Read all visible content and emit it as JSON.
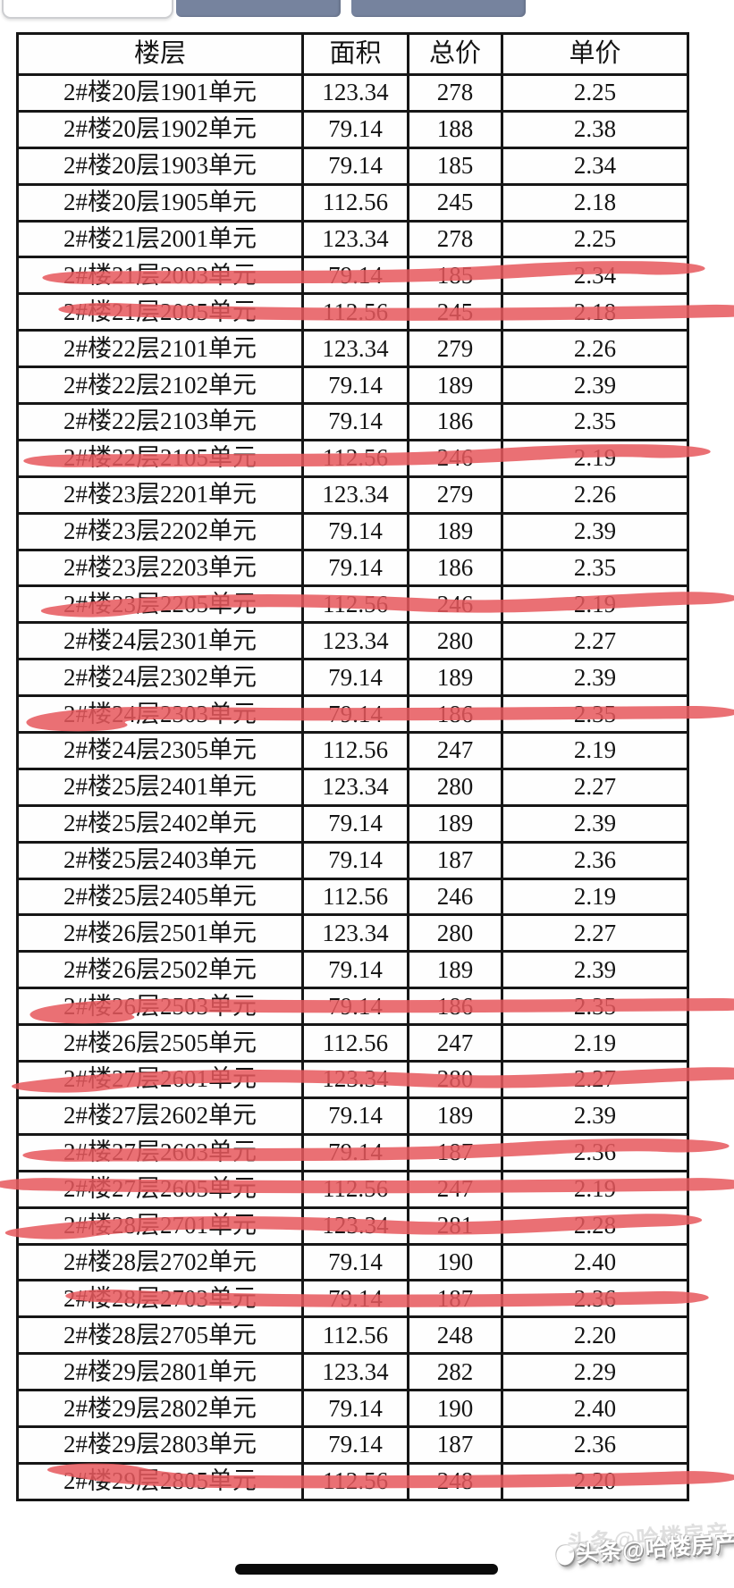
{
  "colors": {
    "tab_inactive": "#76839e",
    "table_border": "#161616",
    "strike": "#e7585d",
    "home_bar": "#0b0b0b"
  },
  "top_tabs": {
    "labels": [
      "",
      "",
      ""
    ]
  },
  "table": {
    "headers": [
      "楼层",
      "面积",
      "总价",
      "单价"
    ],
    "rows": [
      {
        "floor": "2#楼20层1901单元",
        "area": "123.34",
        "total": "278",
        "unit": "2.25",
        "sold": false
      },
      {
        "floor": "2#楼20层1902单元",
        "area": "79.14",
        "total": "188",
        "unit": "2.38",
        "sold": false
      },
      {
        "floor": "2#楼20层1903单元",
        "area": "79.14",
        "total": "185",
        "unit": "2.34",
        "sold": false
      },
      {
        "floor": "2#楼20层1905单元",
        "area": "112.56",
        "total": "245",
        "unit": "2.18",
        "sold": false
      },
      {
        "floor": "2#楼21层2001单元",
        "area": "123.34",
        "total": "278",
        "unit": "2.25",
        "sold": false
      },
      {
        "floor": "2#楼21层2003单元",
        "area": "79.14",
        "total": "185",
        "unit": "2.34",
        "sold": true,
        "strike": {
          "v": "rise",
          "l": 57,
          "r": 737
        }
      },
      {
        "floor": "2#楼21层2005单元",
        "area": "112.56",
        "total": "245",
        "unit": "2.18",
        "sold": true,
        "strike": {
          "v": "sag",
          "l": 77,
          "r": 802
        }
      },
      {
        "floor": "2#楼22层2101单元",
        "area": "123.34",
        "total": "279",
        "unit": "2.26",
        "sold": false
      },
      {
        "floor": "2#楼22层2102单元",
        "area": "79.14",
        "total": "189",
        "unit": "2.39",
        "sold": false
      },
      {
        "floor": "2#楼22层2103单元",
        "area": "79.14",
        "total": "186",
        "unit": "2.35",
        "sold": false
      },
      {
        "floor": "2#楼22层2105单元",
        "area": "112.56",
        "total": "246",
        "unit": "2.19",
        "sold": true,
        "strike": {
          "v": "rise",
          "l": 37,
          "r": 742
        }
      },
      {
        "floor": "2#楼23层2201单元",
        "area": "123.34",
        "total": "279",
        "unit": "2.26",
        "sold": false
      },
      {
        "floor": "2#楼23层2202单元",
        "area": "79.14",
        "total": "189",
        "unit": "2.39",
        "sold": false
      },
      {
        "floor": "2#楼23层2203单元",
        "area": "79.14",
        "total": "186",
        "unit": "2.35",
        "sold": false
      },
      {
        "floor": "2#楼23层2205单元",
        "area": "112.56",
        "total": "246",
        "unit": "2.19",
        "sold": true,
        "strike": {
          "v": "wave",
          "l": 57,
          "r": 772
        }
      },
      {
        "floor": "2#楼24层2301单元",
        "area": "123.34",
        "total": "280",
        "unit": "2.27",
        "sold": false
      },
      {
        "floor": "2#楼24层2302单元",
        "area": "79.14",
        "total": "189",
        "unit": "2.39",
        "sold": false
      },
      {
        "floor": "2#楼24层2303单元",
        "area": "79.14",
        "total": "186",
        "unit": "2.35",
        "sold": true,
        "strike": {
          "v": "hookL",
          "l": 37,
          "r": 772
        }
      },
      {
        "floor": "2#楼24层2305单元",
        "area": "112.56",
        "total": "247",
        "unit": "2.19",
        "sold": false
      },
      {
        "floor": "2#楼25层2401单元",
        "area": "123.34",
        "total": "280",
        "unit": "2.27",
        "sold": false
      },
      {
        "floor": "2#楼25层2402单元",
        "area": "79.14",
        "total": "189",
        "unit": "2.39",
        "sold": false
      },
      {
        "floor": "2#楼25层2403单元",
        "area": "79.14",
        "total": "187",
        "unit": "2.36",
        "sold": false
      },
      {
        "floor": "2#楼25层2405单元",
        "area": "112.56",
        "total": "246",
        "unit": "2.19",
        "sold": false
      },
      {
        "floor": "2#楼26层2501单元",
        "area": "123.34",
        "total": "280",
        "unit": "2.27",
        "sold": false
      },
      {
        "floor": "2#楼26层2502单元",
        "area": "79.14",
        "total": "189",
        "unit": "2.39",
        "sold": false
      },
      {
        "floor": "2#楼26层2503单元",
        "area": "79.14",
        "total": "186",
        "unit": "2.35",
        "sold": true,
        "strike": {
          "v": "hookL",
          "l": 42,
          "r": 802
        }
      },
      {
        "floor": "2#楼26层2505单元",
        "area": "112.56",
        "total": "247",
        "unit": "2.19",
        "sold": false
      },
      {
        "floor": "2#楼27层2601单元",
        "area": "123.34",
        "total": "280",
        "unit": "2.27",
        "sold": true,
        "strike": {
          "v": "wave",
          "l": 27,
          "r": 803
        }
      },
      {
        "floor": "2#楼27层2602单元",
        "area": "79.14",
        "total": "189",
        "unit": "2.39",
        "sold": false
      },
      {
        "floor": "2#楼27层2603单元",
        "area": "79.14",
        "total": "187",
        "unit": "2.36",
        "sold": true,
        "strike": {
          "v": "rise",
          "l": 37,
          "r": 762
        }
      },
      {
        "floor": "2#楼27层2605单元",
        "area": "112.56",
        "total": "247",
        "unit": "2.19",
        "sold": true,
        "strike": {
          "v": "straight",
          "l": 7,
          "r": 782
        }
      },
      {
        "floor": "2#楼28层2701单元",
        "area": "123.34",
        "total": "281",
        "unit": "2.28",
        "sold": true,
        "strike": {
          "v": "wave",
          "l": 17,
          "r": 732
        }
      },
      {
        "floor": "2#楼28层2702单元",
        "area": "79.14",
        "total": "190",
        "unit": "2.40",
        "sold": false
      },
      {
        "floor": "2#楼28层2703单元",
        "area": "79.14",
        "total": "187",
        "unit": "2.36",
        "sold": true,
        "strike": {
          "v": "sag",
          "l": 82,
          "r": 742
        }
      },
      {
        "floor": "2#楼28层2705单元",
        "area": "112.56",
        "total": "248",
        "unit": "2.20",
        "sold": false
      },
      {
        "floor": "2#楼29层2801单元",
        "area": "123.34",
        "total": "282",
        "unit": "2.29",
        "sold": false
      },
      {
        "floor": "2#楼29层2802单元",
        "area": "79.14",
        "total": "190",
        "unit": "2.40",
        "sold": false
      },
      {
        "floor": "2#楼29层2803单元",
        "area": "79.14",
        "total": "187",
        "unit": "2.36",
        "sold": false
      },
      {
        "floor": "2#楼29层2805单元",
        "area": "112.56",
        "total": "248",
        "unit": "2.20",
        "sold": true,
        "strike": {
          "v": "hookLup",
          "l": 57,
          "r": 772
        }
      }
    ]
  },
  "footer": {
    "watermark": "头条@哈楼房产"
  }
}
